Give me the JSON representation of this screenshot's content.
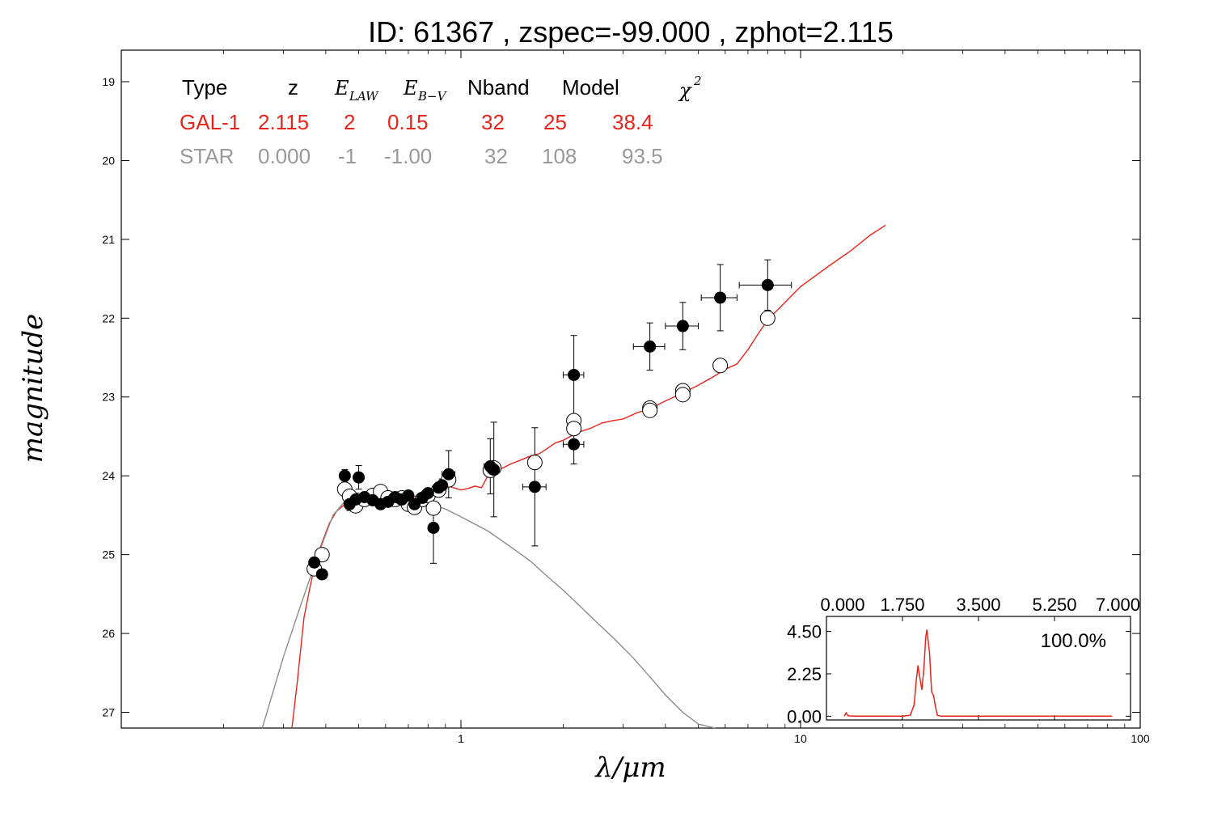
{
  "chart_data": {
    "type": "scatter",
    "title": "ID:  61367 , zspec=-99.000 , zphot=2.115",
    "xlabel": "λ/μm",
    "ylabel": "magnitude",
    "x_scale": "log",
    "xlim": [
      0.1,
      100
    ],
    "ylim": [
      27.2,
      18.6
    ],
    "x_tick_labels": [
      "1",
      "10",
      "100"
    ],
    "y_tick_labels": [
      "19",
      "20",
      "21",
      "22",
      "23",
      "24",
      "25",
      "26",
      "27"
    ],
    "fit_table": {
      "headers": {
        "type": "Type",
        "z": "z",
        "e_law": "E",
        "e_law_sub": "LAW",
        "e_bv": "E",
        "e_bv_sub": "B−V",
        "nband": "Nband",
        "model": "Model",
        "chi2": "χ",
        "chi2_sup": "2"
      },
      "rows": [
        {
          "type": "GAL-1",
          "z": "2.115",
          "e_law": "2",
          "e_bv": "0.15",
          "nband": "32",
          "model": "25",
          "chi2": "38.4",
          "color": "#e8251c"
        },
        {
          "type": "STAR",
          "z": "0.000",
          "e_law": "-1",
          "e_bv": "-1.00",
          "nband": "32",
          "model": "108",
          "chi2": "93.5",
          "color": "#999999"
        }
      ]
    },
    "series": [
      {
        "kind": "galaxy-template",
        "color": "#e8251c",
        "x": [
          0.318,
          0.33,
          0.345,
          0.36,
          0.375,
          0.39,
          0.41,
          0.43,
          0.45,
          0.48,
          0.52,
          0.56,
          0.6,
          0.65,
          0.7,
          0.75,
          0.8,
          0.86,
          0.9,
          0.95,
          1.0,
          1.05,
          1.1,
          1.15,
          1.2,
          1.3,
          1.4,
          1.5,
          1.6,
          1.7,
          1.8,
          1.9,
          2.0,
          2.1,
          2.2,
          2.4,
          2.6,
          2.8,
          3.0,
          3.3,
          3.6,
          4.0,
          4.5,
          5.0,
          5.5,
          6.0,
          6.5,
          7.0,
          7.5,
          8.0,
          9.0,
          10.0,
          12.0,
          14.0,
          16.0,
          17.8
        ],
        "y": [
          27.2,
          26.6,
          25.8,
          25.4,
          25.05,
          24.85,
          24.6,
          24.45,
          24.38,
          24.34,
          24.32,
          24.3,
          24.28,
          24.3,
          24.28,
          24.25,
          24.25,
          24.2,
          24.12,
          24.15,
          24.18,
          24.16,
          24.13,
          24.15,
          24.0,
          23.92,
          23.85,
          23.8,
          23.75,
          23.72,
          23.65,
          23.58,
          23.55,
          23.5,
          23.45,
          23.4,
          23.33,
          23.3,
          23.28,
          23.2,
          23.15,
          23.05,
          22.95,
          22.85,
          22.75,
          22.65,
          22.58,
          22.4,
          22.2,
          22.02,
          21.8,
          21.6,
          21.35,
          21.15,
          20.95,
          20.82
        ]
      },
      {
        "kind": "star-template",
        "color": "#8c8c8c",
        "x": [
          0.26,
          0.3,
          0.34,
          0.38,
          0.42,
          0.46,
          0.5,
          0.55,
          0.6,
          0.65,
          0.7,
          0.8,
          0.9,
          1.0,
          1.2,
          1.4,
          1.6,
          1.8,
          2.0,
          2.2,
          2.5,
          2.8,
          3.2,
          3.6,
          4.0,
          4.5,
          5.0,
          5.6
        ],
        "y": [
          27.2,
          26.3,
          25.6,
          25.0,
          24.5,
          24.3,
          24.28,
          24.28,
          24.3,
          24.32,
          24.33,
          24.35,
          24.42,
          24.52,
          24.7,
          24.9,
          25.08,
          25.28,
          25.45,
          25.62,
          25.85,
          26.05,
          26.3,
          26.55,
          26.78,
          27.0,
          27.15,
          27.2
        ]
      },
      {
        "kind": "observed",
        "marker": "filled-circle",
        "color": "#000000",
        "points": [
          {
            "x": 0.37,
            "y": 25.1,
            "dx": 0.01,
            "dy": 0.05
          },
          {
            "x": 0.39,
            "y": 25.25,
            "dx": 0.01,
            "dy": 0.06
          },
          {
            "x": 0.455,
            "y": 24.0,
            "dx": 0.01,
            "dy": 0.08
          },
          {
            "x": 0.47,
            "y": 24.36,
            "dx": 0.015,
            "dy": 0.08
          },
          {
            "x": 0.49,
            "y": 24.3,
            "dx": 0.015,
            "dy": 0.08
          },
          {
            "x": 0.5,
            "y": 24.02,
            "dx": 0.01,
            "dy": 0.15
          },
          {
            "x": 0.52,
            "y": 24.27,
            "dx": 0.015,
            "dy": 0.06
          },
          {
            "x": 0.55,
            "y": 24.31,
            "dx": 0.015,
            "dy": 0.06
          },
          {
            "x": 0.58,
            "y": 24.36,
            "dx": 0.015,
            "dy": 0.06
          },
          {
            "x": 0.61,
            "y": 24.33,
            "dx": 0.015,
            "dy": 0.06
          },
          {
            "x": 0.64,
            "y": 24.27,
            "dx": 0.015,
            "dy": 0.06
          },
          {
            "x": 0.67,
            "y": 24.3,
            "dx": 0.015,
            "dy": 0.06
          },
          {
            "x": 0.7,
            "y": 24.25,
            "dx": 0.015,
            "dy": 0.06
          },
          {
            "x": 0.73,
            "y": 24.36,
            "dx": 0.015,
            "dy": 0.06
          },
          {
            "x": 0.77,
            "y": 24.28,
            "dx": 0.02,
            "dy": 0.06
          },
          {
            "x": 0.8,
            "y": 24.22,
            "dx": 0.02,
            "dy": 0.06
          },
          {
            "x": 0.83,
            "y": 24.66,
            "dx": 0.02,
            "dy": 0.45
          },
          {
            "x": 0.86,
            "y": 24.15,
            "dx": 0.02,
            "dy": 0.07
          },
          {
            "x": 0.88,
            "y": 24.12,
            "dx": 0.03,
            "dy": 0.08
          },
          {
            "x": 0.92,
            "y": 23.98,
            "dx": 0.04,
            "dy": 0.3
          },
          {
            "x": 1.22,
            "y": 23.88,
            "dx": 0.05,
            "dy": 0.35
          },
          {
            "x": 1.25,
            "y": 23.92,
            "dx": 0.05,
            "dy": 0.6
          },
          {
            "x": 1.65,
            "y": 24.14,
            "dx": 0.13,
            "dy": 0.75
          },
          {
            "x": 2.15,
            "y": 22.72,
            "dx": 0.15,
            "dy": 0.5
          },
          {
            "x": 2.15,
            "y": 23.6,
            "dx": 0.15,
            "dy": 0.25
          },
          {
            "x": 3.6,
            "y": 22.36,
            "dx": 0.38,
            "dy": 0.3
          },
          {
            "x": 4.5,
            "y": 22.1,
            "dx": 0.5,
            "dy": 0.3
          },
          {
            "x": 5.8,
            "y": 21.74,
            "dx": 0.7,
            "dy": 0.42
          },
          {
            "x": 8.0,
            "y": 21.58,
            "dx": 1.4,
            "dy": 0.32
          }
        ]
      },
      {
        "kind": "model-photometry",
        "marker": "open-circle",
        "color": "#000000",
        "points": [
          {
            "x": 0.37,
            "y": 25.18
          },
          {
            "x": 0.39,
            "y": 25.0
          },
          {
            "x": 0.455,
            "y": 24.17
          },
          {
            "x": 0.47,
            "y": 24.26
          },
          {
            "x": 0.49,
            "y": 24.38
          },
          {
            "x": 0.52,
            "y": 24.3
          },
          {
            "x": 0.55,
            "y": 24.25
          },
          {
            "x": 0.58,
            "y": 24.2
          },
          {
            "x": 0.61,
            "y": 24.28
          },
          {
            "x": 0.64,
            "y": 24.3
          },
          {
            "x": 0.67,
            "y": 24.28
          },
          {
            "x": 0.7,
            "y": 24.36
          },
          {
            "x": 0.73,
            "y": 24.4
          },
          {
            "x": 0.77,
            "y": 24.3
          },
          {
            "x": 0.8,
            "y": 24.25
          },
          {
            "x": 0.83,
            "y": 24.41
          },
          {
            "x": 0.86,
            "y": 24.18
          },
          {
            "x": 0.92,
            "y": 24.05
          },
          {
            "x": 1.22,
            "y": 23.93
          },
          {
            "x": 1.25,
            "y": 23.9
          },
          {
            "x": 1.65,
            "y": 23.83
          },
          {
            "x": 2.15,
            "y": 23.3
          },
          {
            "x": 2.15,
            "y": 23.4
          },
          {
            "x": 3.6,
            "y": 23.14
          },
          {
            "x": 3.6,
            "y": 23.17
          },
          {
            "x": 4.5,
            "y": 22.92
          },
          {
            "x": 4.5,
            "y": 22.97
          },
          {
            "x": 5.8,
            "y": 22.6
          },
          {
            "x": 8.0,
            "y": 22.0
          }
        ]
      }
    ],
    "inset": {
      "label": "100.0%",
      "xlim": [
        0,
        7
      ],
      "ylim": [
        -0.2,
        5.3
      ],
      "x_tick_labels": [
        "0.000",
        "1.750",
        "3.500",
        "5.250",
        "7.000"
      ],
      "y_tick_labels": [
        "0.00",
        "2.25",
        "4.50"
      ],
      "line_color": "#e8251c",
      "x": [
        0.0,
        0.05,
        0.1,
        0.3,
        0.6,
        0.9,
        1.2,
        1.5,
        1.7,
        1.8,
        1.85,
        1.9,
        1.95,
        2.0,
        2.05,
        2.1,
        2.13,
        2.2,
        2.25,
        2.3,
        2.35,
        2.4,
        2.5,
        3.0,
        4.0,
        5.0,
        6.0,
        6.9
      ],
      "y": [
        0.0,
        0.18,
        0.02,
        0.0,
        0.0,
        0.0,
        0.0,
        0.0,
        0.05,
        0.6,
        1.8,
        2.7,
        2.0,
        1.4,
        2.5,
        4.2,
        4.6,
        3.3,
        1.3,
        1.1,
        0.5,
        0.05,
        0.0,
        0.0,
        0.0,
        0.0,
        0.0,
        0.0
      ]
    }
  }
}
